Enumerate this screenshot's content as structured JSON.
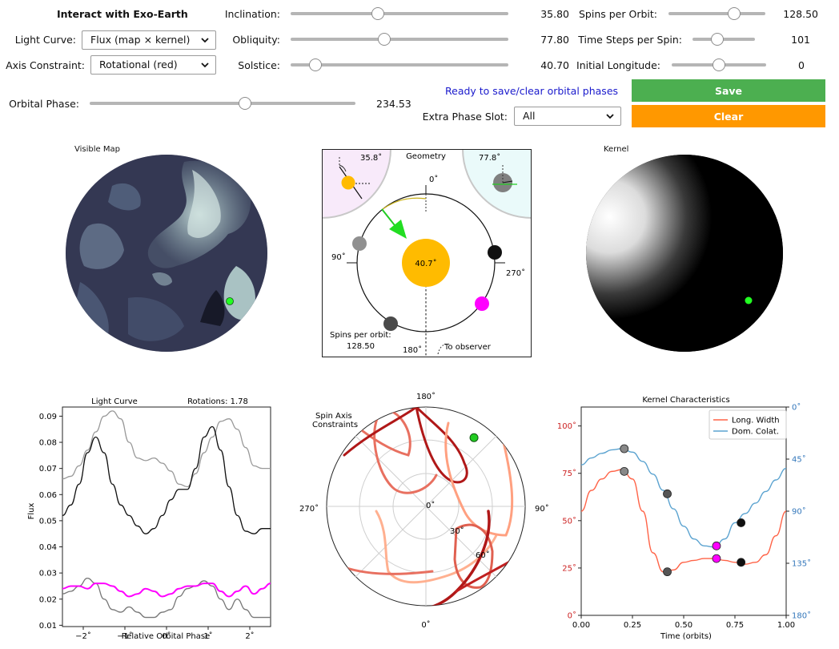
{
  "controls": {
    "title": "Interact with Exo-Earth",
    "light_curve": {
      "label": "Light Curve:",
      "value": "Flux (map × kernel)"
    },
    "axis_constraint": {
      "label": "Axis Constraint:",
      "value": "Rotational (red)"
    },
    "orbital_phase": {
      "label": "Orbital Phase:",
      "value": "234.53",
      "fraction": 0.585
    },
    "inclination": {
      "label": "Inclination:",
      "value": "35.80",
      "fraction": 0.4
    },
    "obliquity": {
      "label": "Obliquity:",
      "value": "77.80",
      "fraction": 0.43
    },
    "solstice": {
      "label": "Solstice:",
      "value": "40.70",
      "fraction": 0.113
    },
    "spins_per_orbit": {
      "label": "Spins per Orbit:",
      "value": "128.50",
      "fraction": 0.675
    },
    "time_steps_per_spin": {
      "label": "Time Steps per Spin:",
      "value": "101",
      "fraction": 0.4
    },
    "initial_longitude": {
      "label": "Initial Longitude:",
      "value": "0",
      "fraction": 0.5
    },
    "status": "Ready to save/clear orbital phases",
    "extra_phase_slot": {
      "label": "Extra Phase Slot:",
      "value": "All"
    },
    "save_label": "Save",
    "clear_label": "Clear",
    "save_color": "#4caf50",
    "clear_color": "#ff9800"
  },
  "visible_map": {
    "title": "Visible Map"
  },
  "geometry": {
    "title": "Geometry",
    "inclination_label": "35.8˚",
    "obliquity_label": "77.8˚",
    "tick_0": "0˚",
    "tick_90": "90˚",
    "tick_180": "180˚",
    "tick_270": "270˚",
    "sun_label": "40.7˚",
    "spins_label": "Spins per orbit:",
    "spins_value": "128.50",
    "observer_label": "To observer"
  },
  "kernel": {
    "title": "Kernel"
  },
  "chart_data": [
    {
      "type": "line",
      "title": "Light Curve",
      "subtitle": "Rotations: 1.78",
      "xlabel": "Relative Orbital Phase",
      "ylabel": "Flux",
      "xlim": [
        -2.5,
        2.5
      ],
      "ylim": [
        0.0095,
        0.0935
      ],
      "xticks": [
        "−2˚",
        "−1˚",
        "0˚",
        "1˚",
        "2˚"
      ],
      "xtick_values": [
        -2,
        -1,
        0,
        1,
        2
      ],
      "yticks": [
        "0.01",
        "0.02",
        "0.03",
        "0.04",
        "0.05",
        "0.06",
        "0.07",
        "0.08",
        "0.09"
      ],
      "ytick_values": [
        0.01,
        0.02,
        0.03,
        0.04,
        0.05,
        0.06,
        0.07,
        0.08,
        0.09
      ],
      "series": [
        {
          "color": "#999999",
          "x": [
            -2.5,
            -2.3,
            -2.1,
            -1.9,
            -1.7,
            -1.5,
            -1.3,
            -1.1,
            -0.9,
            -0.7,
            -0.5,
            -0.3,
            -0.1,
            0.1,
            0.3,
            0.5,
            0.7,
            0.9,
            1.1,
            1.3,
            1.5,
            1.7,
            1.9,
            2.1,
            2.3,
            2.5
          ],
          "y": [
            0.066,
            0.067,
            0.071,
            0.077,
            0.084,
            0.09,
            0.092,
            0.089,
            0.08,
            0.074,
            0.073,
            0.074,
            0.072,
            0.069,
            0.064,
            0.063,
            0.068,
            0.076,
            0.082,
            0.088,
            0.089,
            0.085,
            0.078,
            0.071,
            0.07,
            0.07
          ]
        },
        {
          "color": "#111111",
          "x": [
            -2.5,
            -2.3,
            -2.1,
            -1.9,
            -1.7,
            -1.5,
            -1.3,
            -1.1,
            -0.9,
            -0.7,
            -0.5,
            -0.3,
            -0.1,
            0.1,
            0.3,
            0.5,
            0.7,
            0.9,
            1.1,
            1.3,
            1.5,
            1.7,
            1.9,
            2.1,
            2.3,
            2.5
          ],
          "y": [
            0.052,
            0.056,
            0.064,
            0.076,
            0.082,
            0.076,
            0.064,
            0.056,
            0.052,
            0.048,
            0.045,
            0.047,
            0.052,
            0.058,
            0.062,
            0.062,
            0.07,
            0.082,
            0.086,
            0.077,
            0.063,
            0.052,
            0.046,
            0.045,
            0.047,
            0.047
          ]
        },
        {
          "color": "#777777",
          "x": [
            -2.5,
            -2.3,
            -2.1,
            -1.9,
            -1.7,
            -1.5,
            -1.3,
            -1.1,
            -0.9,
            -0.7,
            -0.5,
            -0.3,
            -0.1,
            0.1,
            0.3,
            0.5,
            0.7,
            0.9,
            1.1,
            1.3,
            1.5,
            1.7,
            1.9,
            2.1,
            2.3,
            2.5
          ],
          "y": [
            0.022,
            0.023,
            0.025,
            0.028,
            0.026,
            0.02,
            0.016,
            0.015,
            0.017,
            0.015,
            0.013,
            0.013,
            0.015,
            0.016,
            0.021,
            0.024,
            0.025,
            0.027,
            0.025,
            0.02,
            0.016,
            0.02,
            0.016,
            0.013,
            0.013,
            0.013
          ]
        },
        {
          "color": "#ff00ff",
          "x": [
            -2.5,
            -2.3,
            -2.1,
            -1.9,
            -1.7,
            -1.5,
            -1.3,
            -1.1,
            -0.9,
            -0.7,
            -0.5,
            -0.3,
            -0.1,
            0.1,
            0.3,
            0.5,
            0.7,
            0.9,
            1.1,
            1.3,
            1.5,
            1.7,
            1.9,
            2.1,
            2.3,
            2.5
          ],
          "y": [
            0.024,
            0.025,
            0.025,
            0.024,
            0.026,
            0.026,
            0.025,
            0.023,
            0.021,
            0.022,
            0.024,
            0.023,
            0.021,
            0.022,
            0.024,
            0.025,
            0.025,
            0.026,
            0.026,
            0.023,
            0.021,
            0.023,
            0.025,
            0.022,
            0.024,
            0.026
          ]
        }
      ]
    },
    {
      "type": "polar",
      "title": "Spin Axis Constraints",
      "angle_labels": [
        "180˚",
        "90˚",
        "0˚",
        "270˚"
      ],
      "radial_labels": [
        "0˚",
        "30˚",
        "60˚"
      ],
      "marker": {
        "angle_deg": 145,
        "radius_deg": 76,
        "color": "#22cc22"
      }
    },
    {
      "type": "line",
      "title": "Kernel Characteristics",
      "xlabel": "Time (orbits)",
      "xlim": [
        0,
        1
      ],
      "ylim_left": [
        0,
        110
      ],
      "ylim_right": [
        180,
        0
      ],
      "xticks": [
        "0.00",
        "0.25",
        "0.50",
        "0.75",
        "1.00"
      ],
      "xtick_values": [
        0,
        0.25,
        0.5,
        0.75,
        1
      ],
      "yticks_left": [
        "0˚",
        "25˚",
        "50˚",
        "75˚",
        "100˚"
      ],
      "ytick_left_values": [
        0,
        25,
        50,
        75,
        100
      ],
      "yticks_right": [
        "0˚",
        "45˚",
        "90˚",
        "135˚",
        "180˚"
      ],
      "ytick_right_values": [
        0,
        45,
        90,
        135,
        180
      ],
      "left_color": "#cc2222",
      "right_color": "#3377bb",
      "series": [
        {
          "name": "Long. Width",
          "color": "#ff6347",
          "axis": "left",
          "x": [
            0,
            0.05,
            0.1,
            0.15,
            0.2,
            0.25,
            0.3,
            0.35,
            0.4,
            0.45,
            0.5,
            0.55,
            0.6,
            0.65,
            0.7,
            0.75,
            0.8,
            0.85,
            0.9,
            0.95,
            1.0
          ],
          "y": [
            55,
            66,
            72,
            76,
            77,
            72,
            55,
            33,
            23,
            24,
            28,
            29,
            30,
            30,
            29,
            28,
            27,
            28,
            32,
            42,
            55
          ]
        },
        {
          "name": "Dom. Colat.",
          "color": "#5ba3d0",
          "axis": "right",
          "x": [
            0,
            0.05,
            0.1,
            0.15,
            0.2,
            0.25,
            0.3,
            0.35,
            0.4,
            0.45,
            0.5,
            0.55,
            0.6,
            0.65,
            0.7,
            0.75,
            0.8,
            0.85,
            0.9,
            0.95,
            1.0
          ],
          "y": [
            50,
            44,
            40,
            37,
            36,
            39,
            47,
            58,
            72,
            88,
            103,
            114,
            120,
            121,
            114,
            100,
            92,
            83,
            73,
            63,
            53
          ]
        }
      ],
      "markers": [
        {
          "x": 0.21,
          "y": 76,
          "axis": "left",
          "color": "#888888"
        },
        {
          "x": 0.42,
          "y": 23,
          "axis": "left",
          "color": "#555555"
        },
        {
          "x": 0.66,
          "y": 30,
          "axis": "left",
          "color": "#ff00ff"
        },
        {
          "x": 0.78,
          "y": 28,
          "axis": "left",
          "color": "#111111"
        },
        {
          "x": 0.21,
          "y": 36,
          "axis": "right",
          "color": "#888888"
        },
        {
          "x": 0.42,
          "y": 75,
          "axis": "right",
          "color": "#555555"
        },
        {
          "x": 0.66,
          "y": 120,
          "axis": "right",
          "color": "#ff00ff"
        },
        {
          "x": 0.78,
          "y": 100,
          "axis": "right",
          "color": "#111111"
        }
      ],
      "legend": "top-right"
    }
  ]
}
